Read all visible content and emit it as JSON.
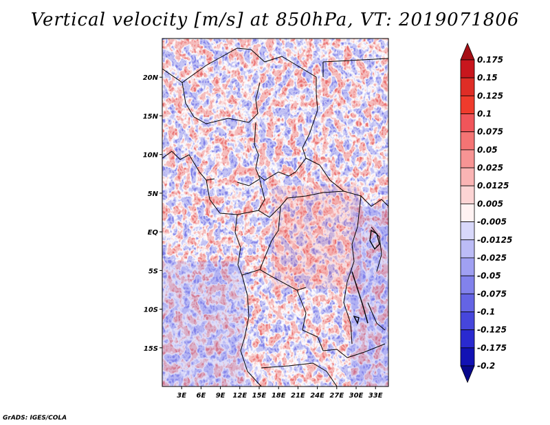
{
  "title": "Vertical velocity [m/s] at 850hPa, VT: 2019071806",
  "credit": "GrADS: IGES/COLA",
  "map": {
    "variable": "Vertical velocity",
    "units": "m/s",
    "level": "850hPa",
    "valid_time": "2019071806",
    "lat_range": [
      -20,
      25
    ],
    "lon_range": [
      0,
      35
    ],
    "lat_ticks": [
      {
        "value": 20,
        "label": "20N"
      },
      {
        "value": 15,
        "label": "15N"
      },
      {
        "value": 10,
        "label": "10N"
      },
      {
        "value": 5,
        "label": "5N"
      },
      {
        "value": 0,
        "label": "EQ"
      },
      {
        "value": -5,
        "label": "5S"
      },
      {
        "value": -10,
        "label": "10S"
      },
      {
        "value": -15,
        "label": "15S"
      }
    ],
    "lon_ticks": [
      {
        "value": 3,
        "label": "3E"
      },
      {
        "value": 6,
        "label": "6E"
      },
      {
        "value": 9,
        "label": "9E"
      },
      {
        "value": 12,
        "label": "12E"
      },
      {
        "value": 15,
        "label": "15E"
      },
      {
        "value": 18,
        "label": "18E"
      },
      {
        "value": 21,
        "label": "21E"
      },
      {
        "value": 24,
        "label": "24E"
      },
      {
        "value": 27,
        "label": "27E"
      },
      {
        "value": 30,
        "label": "30E"
      },
      {
        "value": 33,
        "label": "33E"
      }
    ]
  },
  "colorbar": {
    "labels": [
      "0.175",
      "0.15",
      "0.125",
      "0.1",
      "0.075",
      "0.05",
      "0.025",
      "0.0125",
      "0.005",
      "-0.005",
      "-0.0125",
      "-0.025",
      "-0.05",
      "-0.075",
      "-0.1",
      "-0.125",
      "-0.175",
      "-0.2"
    ],
    "colors": [
      "#a50f15",
      "#c8161d",
      "#de2d26",
      "#ef3b2c",
      "#f0555a",
      "#f47474",
      "#f79494",
      "#fab4b4",
      "#fcd4d4",
      "#fff2f2",
      "#d8d8fa",
      "#bcbcf6",
      "#a0a0f2",
      "#8282ec",
      "#6464e4",
      "#4646dc",
      "#2a2ad0",
      "#1212b4",
      "#08088c"
    ]
  }
}
